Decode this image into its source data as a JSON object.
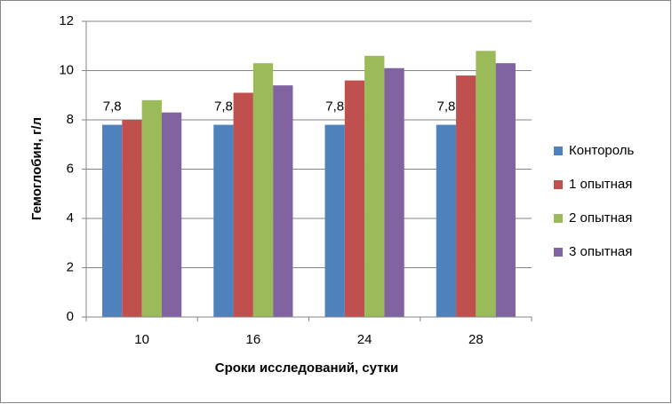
{
  "chart_data": {
    "type": "bar",
    "x_label": "Сроки исследований, сутки",
    "y_label": "Гемоглобин, г/л",
    "categories": [
      "10",
      "16",
      "24",
      "28"
    ],
    "series": [
      {
        "name": "Контороль",
        "color": "#4f81bd",
        "values": [
          7.8,
          7.8,
          7.8,
          7.8
        ],
        "value_labels": [
          "7,8",
          "7,8",
          "7,8",
          "7,8"
        ]
      },
      {
        "name": "1 опытная",
        "color": "#c0504d",
        "values": [
          8.0,
          9.1,
          9.6,
          9.8
        ]
      },
      {
        "name": "2 опытная",
        "color": "#9bbb59",
        "values": [
          8.8,
          10.3,
          10.6,
          10.8
        ]
      },
      {
        "name": "3 опытная",
        "color": "#8064a2",
        "values": [
          8.3,
          9.4,
          10.1,
          10.3
        ]
      }
    ],
    "ylim": [
      0,
      12
    ],
    "yticks": [
      0,
      2,
      4,
      6,
      8,
      10,
      12
    ],
    "grid": true,
    "legend": "right"
  }
}
